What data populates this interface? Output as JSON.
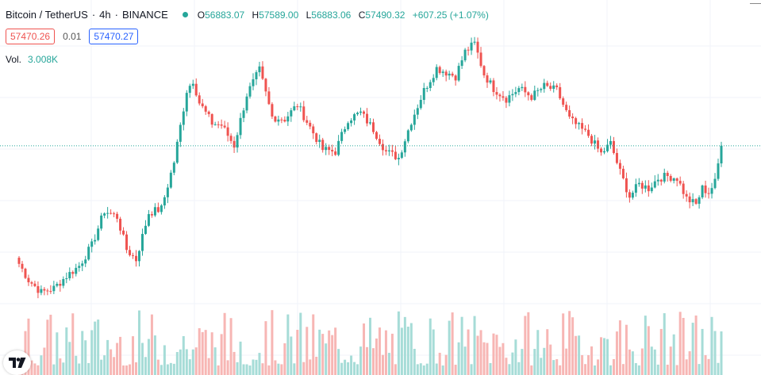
{
  "header": {
    "symbol": "Bitcoin / TetherUS",
    "separator": "·",
    "interval": "4h",
    "exchange": "BINANCE",
    "status_color": "#26a69a",
    "ohlc": {
      "o_label": "O",
      "o": "56883.07",
      "h_label": "H",
      "h": "57589.00",
      "l_label": "L",
      "l": "56883.06",
      "c_label": "C",
      "c": "57490.32",
      "change": "+607.25 (+1.07%)"
    }
  },
  "prices": {
    "bid": "57470.26",
    "spread": "0.01",
    "ask": "57470.27",
    "bid_color": "#ef5350",
    "ask_color": "#2962ff"
  },
  "volume": {
    "label": "Vol.",
    "value": "3.008K"
  },
  "colors": {
    "up": "#26a69a",
    "down": "#ef5350",
    "up_volume": "#a6dcd7",
    "down_volume": "#f7b6b4",
    "grid": "#f0f3fa",
    "current_price_line": "#26a69a"
  },
  "logo": {
    "icon": "tradingview-logo-icon"
  },
  "chart_data": {
    "type": "candlestick",
    "title": "Bitcoin / TetherUS · 4h · BINANCE",
    "price_range": [
      48500,
      62500
    ],
    "grid": true,
    "current_price": 57490.32,
    "anchors": [
      [
        0,
        51700
      ],
      [
        3,
        50900
      ],
      [
        7,
        50300
      ],
      [
        11,
        50500
      ],
      [
        15,
        51100
      ],
      [
        19,
        51600
      ],
      [
        23,
        52600
      ],
      [
        27,
        54300
      ],
      [
        31,
        54000
      ],
      [
        34,
        52400
      ],
      [
        37,
        51900
      ],
      [
        41,
        54200
      ],
      [
        45,
        54400
      ],
      [
        49,
        56700
      ],
      [
        53,
        60200
      ],
      [
        55,
        60700
      ],
      [
        57,
        59600
      ],
      [
        61,
        58600
      ],
      [
        64,
        58500
      ],
      [
        68,
        57500
      ],
      [
        72,
        60000
      ],
      [
        76,
        61200
      ],
      [
        80,
        58900
      ],
      [
        84,
        58800
      ],
      [
        88,
        59500
      ],
      [
        92,
        58400
      ],
      [
        96,
        57300
      ],
      [
        100,
        57200
      ],
      [
        104,
        58800
      ],
      [
        108,
        59100
      ],
      [
        112,
        58300
      ],
      [
        116,
        57200
      ],
      [
        120,
        56900
      ],
      [
        124,
        58700
      ],
      [
        128,
        60200
      ],
      [
        132,
        61300
      ],
      [
        135,
        61100
      ],
      [
        138,
        60900
      ],
      [
        141,
        62100
      ],
      [
        144,
        62500
      ],
      [
        147,
        61000
      ],
      [
        150,
        60300
      ],
      [
        154,
        59800
      ],
      [
        158,
        60300
      ],
      [
        162,
        59900
      ],
      [
        166,
        60400
      ],
      [
        170,
        60200
      ],
      [
        174,
        58800
      ],
      [
        177,
        58400
      ],
      [
        180,
        58000
      ],
      [
        184,
        57100
      ],
      [
        187,
        57600
      ],
      [
        190,
        56200
      ],
      [
        193,
        55000
      ],
      [
        196,
        55600
      ],
      [
        199,
        55400
      ],
      [
        202,
        55900
      ],
      [
        205,
        56000
      ],
      [
        208,
        55900
      ],
      [
        211,
        54900
      ],
      [
        214,
        54600
      ],
      [
        216,
        55400
      ],
      [
        218,
        55200
      ],
      [
        220,
        55700
      ],
      [
        222,
        57490
      ]
    ],
    "volume_range": [
      0,
      3008
    ],
    "last_volume": 3008
  }
}
